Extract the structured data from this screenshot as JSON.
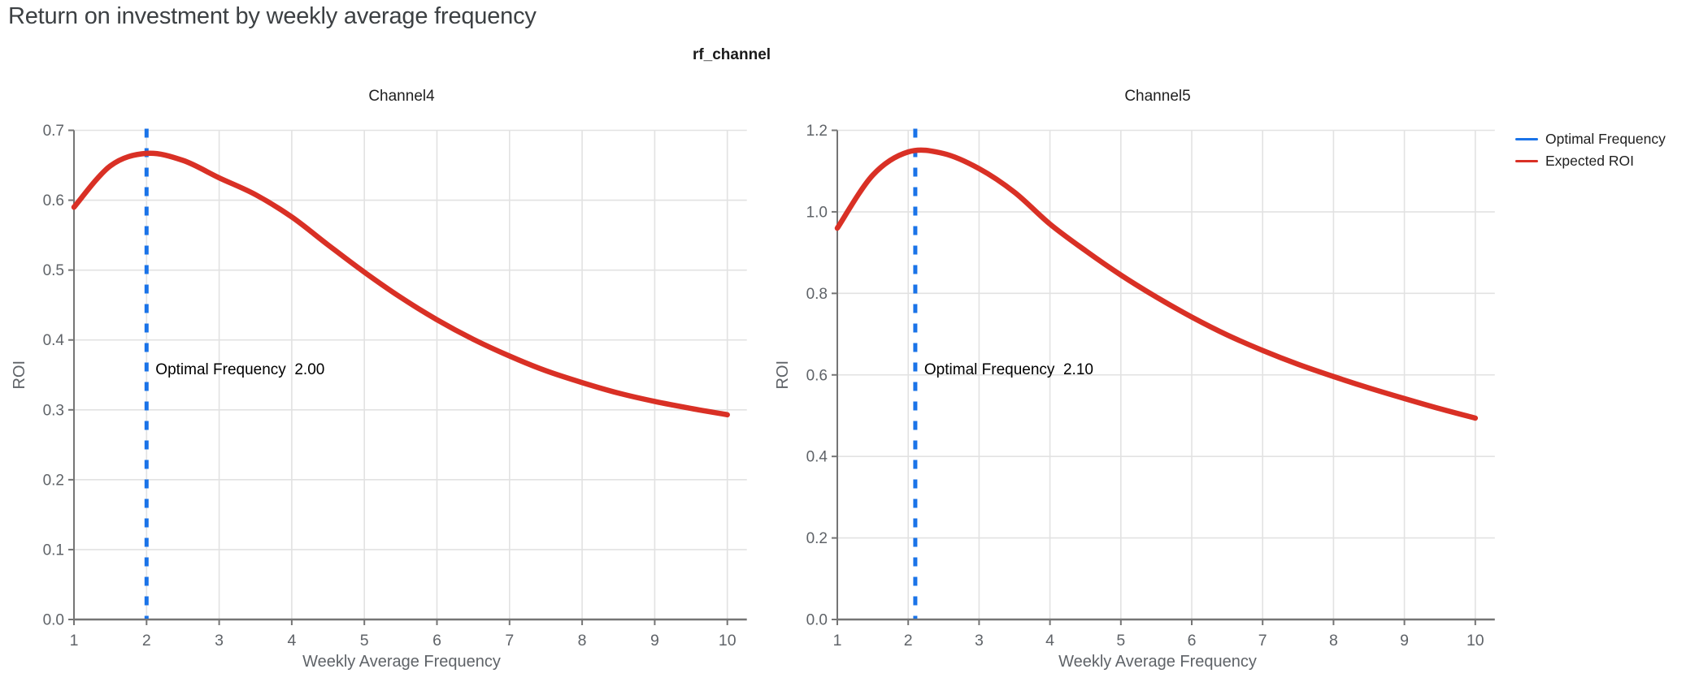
{
  "page_title": "Return on investment by weekly average frequency",
  "colors": {
    "title": "#3C4043",
    "axis_label": "#5F6368",
    "tick_label": "#5F6368",
    "gridline": "#E2E2E2",
    "spine": "#757575",
    "annotation": "#000000",
    "subplot_title": "#1F1F1F",
    "legend_text": "#1F1F1F",
    "expected_roi": "#D93025",
    "optimal_frequency": "#1A73E8"
  },
  "chart_data": {
    "type": "line",
    "facet_title": "rf_channel",
    "xlabel": "Weekly Average Frequency",
    "ylabel": "ROI",
    "x_range": [
      1,
      10
    ],
    "x_ticks": [
      1,
      2,
      3,
      4,
      5,
      6,
      7,
      8,
      9,
      10
    ],
    "grid": true,
    "legend": {
      "position": "top-right",
      "items": [
        {
          "label": "Optimal Frequency",
          "color": "#1A73E8",
          "dash": false
        },
        {
          "label": "Expected ROI",
          "color": "#D93025",
          "dash": false
        }
      ]
    },
    "subplots": [
      {
        "title": "Channel4",
        "ylim": [
          0,
          0.7
        ],
        "ytick_step": 0.1,
        "optimal_frequency": 2.0,
        "annotation_label": "Optimal Frequency",
        "annotation_value": "2.00",
        "x": [
          1.0,
          1.5,
          2.0,
          2.5,
          3.0,
          3.5,
          4.0,
          4.5,
          5.0,
          5.5,
          6.0,
          6.5,
          7.0,
          7.5,
          8.0,
          8.5,
          9.0,
          9.5,
          10.0
        ],
        "expected_roi": [
          0.59,
          0.649,
          0.667,
          0.657,
          0.632,
          0.608,
          0.576,
          0.536,
          0.497,
          0.461,
          0.429,
          0.401,
          0.377,
          0.356,
          0.339,
          0.324,
          0.312,
          0.302,
          0.293
        ]
      },
      {
        "title": "Channel5",
        "ylim": [
          0,
          1.2
        ],
        "ytick_step": 0.2,
        "optimal_frequency": 2.1,
        "annotation_label": "Optimal Frequency",
        "annotation_value": "2.10",
        "x": [
          1.0,
          1.5,
          2.0,
          2.5,
          3.0,
          3.5,
          4.0,
          4.5,
          5.0,
          5.5,
          6.0,
          6.5,
          7.0,
          7.5,
          8.0,
          8.5,
          9.0,
          9.5,
          10.0
        ],
        "expected_roi": [
          0.96,
          1.09,
          1.147,
          1.143,
          1.106,
          1.048,
          0.97,
          0.905,
          0.845,
          0.791,
          0.742,
          0.698,
          0.66,
          0.626,
          0.596,
          0.568,
          0.542,
          0.517,
          0.494
        ]
      }
    ]
  }
}
